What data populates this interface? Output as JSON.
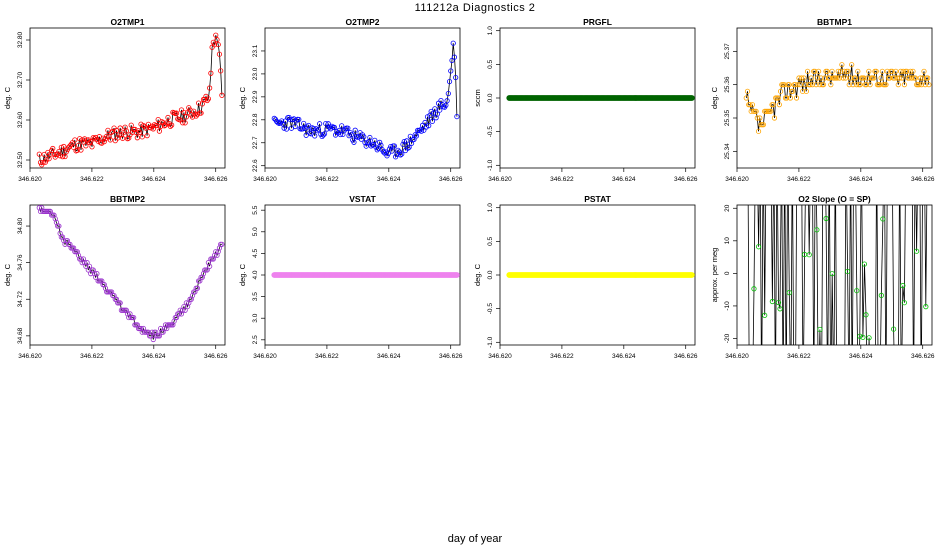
{
  "figure": {
    "title": "111212a   Diagnostics 2",
    "xcaption": "day of year"
  },
  "chart_data": [
    {
      "id": "o2tmp1",
      "type": "line",
      "title": "O2TMP1",
      "ylabel": "deg. C",
      "xlim": [
        346.62,
        346.6263
      ],
      "ylim": [
        32.48,
        32.83
      ],
      "xticks": [
        "346.620",
        "346.622",
        "346.624",
        "346.626"
      ],
      "yticks": [
        "32.50",
        "32.60",
        "32.70",
        "32.80"
      ],
      "color": "#ff0000",
      "points": "open-circle",
      "noise": 0.018,
      "seed": 11,
      "x": [
        346.6203,
        346.621,
        346.6215,
        346.622,
        346.6225,
        346.623,
        346.6235,
        346.624,
        346.6245,
        346.625,
        346.6255,
        346.6258,
        346.6259,
        346.6261,
        346.6262
      ],
      "y": [
        32.5,
        32.52,
        32.54,
        32.54,
        32.56,
        32.57,
        32.57,
        32.58,
        32.6,
        32.61,
        32.63,
        32.66,
        32.8,
        32.8,
        32.65
      ]
    },
    {
      "id": "o2tmp2",
      "type": "line",
      "title": "O2TMP2",
      "ylabel": "deg. C",
      "xlim": [
        346.62,
        346.6263
      ],
      "ylim": [
        22.59,
        23.2
      ],
      "xticks": [
        "346.620",
        "346.622",
        "346.624",
        "346.626"
      ],
      "yticks": [
        "22.6",
        "22.7",
        "22.8",
        "22.9",
        "23.0",
        "23.1"
      ],
      "color": "#0000ff",
      "points": "open-circle",
      "noise": 0.03,
      "seed": 23,
      "x": [
        346.6203,
        346.6208,
        346.6215,
        346.622,
        346.6225,
        346.623,
        346.6235,
        346.6238,
        346.624,
        346.6245,
        346.6248,
        346.6252,
        346.6256,
        346.6259,
        346.6261,
        346.6262
      ],
      "y": [
        22.78,
        22.79,
        22.75,
        22.76,
        22.75,
        22.72,
        22.7,
        22.67,
        22.65,
        22.68,
        22.72,
        22.78,
        22.85,
        22.88,
        23.15,
        22.84
      ]
    },
    {
      "id": "prgfl",
      "type": "scatter",
      "title": "PRGFL",
      "ylabel": "sccm",
      "xlim": [
        346.62,
        346.6263
      ],
      "ylim": [
        -1.04,
        1.04
      ],
      "xticks": [
        "346.620",
        "346.622",
        "346.624",
        "346.626"
      ],
      "yticks": [
        "-1.0",
        "-0.5",
        "0.0",
        "0.5",
        "1.0"
      ],
      "color": "#006400",
      "points": "filled-circle",
      "noise": 0,
      "seed": 0,
      "x": [
        346.6203,
        346.6262
      ],
      "y": [
        0.0,
        0.0
      ]
    },
    {
      "id": "bbtmp1",
      "type": "line",
      "title": "BBTMP1",
      "ylabel": "deg. C",
      "xlim": [
        346.62,
        346.6263
      ],
      "ylim": [
        25.335,
        25.377
      ],
      "xticks": [
        "346.620",
        "346.622",
        "346.624",
        "346.626"
      ],
      "yticks": [
        "25.34",
        "25.35",
        "25.36",
        "25.37"
      ],
      "color": "#ffa500",
      "points": "open-circle",
      "quantum": 0.002,
      "noise": 0.003,
      "seed": 37,
      "x": [
        346.6203,
        346.6207,
        346.621,
        346.6215,
        346.622,
        346.6225,
        346.623,
        346.6235,
        346.624,
        346.6245,
        346.625,
        346.6255,
        346.6262
      ],
      "y": [
        25.355,
        25.348,
        25.35,
        25.358,
        25.36,
        25.362,
        25.362,
        25.363,
        25.362,
        25.362,
        25.362,
        25.362,
        25.362
      ]
    },
    {
      "id": "bbtmp2",
      "type": "line",
      "title": "BBTMP2",
      "ylabel": "deg. C",
      "xlim": [
        346.62,
        346.6263
      ],
      "ylim": [
        34.67,
        34.823
      ],
      "xticks": [
        "346.620",
        "346.622",
        "346.624",
        "346.626"
      ],
      "yticks": [
        "34.68",
        "34.72",
        "34.76",
        "34.80"
      ],
      "color": "#9932cc",
      "points": "open-circle",
      "quantum": 0.004,
      "noise": 0.003,
      "seed": 51,
      "x": [
        346.6203,
        346.6208,
        346.621,
        346.6215,
        346.622,
        346.6225,
        346.623,
        346.6235,
        346.624,
        346.6245,
        346.625,
        346.6255,
        346.626,
        346.6262
      ],
      "y": [
        34.82,
        34.81,
        34.79,
        34.77,
        34.75,
        34.73,
        34.71,
        34.69,
        34.68,
        34.69,
        34.71,
        34.74,
        34.77,
        34.78
      ]
    },
    {
      "id": "vstat",
      "type": "scatter",
      "title": "VSTAT",
      "ylabel": "deg. C",
      "xlim": [
        346.62,
        346.6263
      ],
      "ylim": [
        2.38,
        5.62
      ],
      "xticks": [
        "346.620",
        "346.622",
        "346.624",
        "346.626"
      ],
      "yticks": [
        "2.5",
        "3.0",
        "3.5",
        "4.0",
        "4.5",
        "5.0",
        "5.5"
      ],
      "color": "#ee82ee",
      "points": "filled-circle",
      "noise": 0,
      "seed": 0,
      "x": [
        346.6203,
        346.6262
      ],
      "y": [
        4.0,
        4.0
      ]
    },
    {
      "id": "pstat",
      "type": "scatter",
      "title": "PSTAT",
      "ylabel": "deg. C",
      "xlim": [
        346.62,
        346.6263
      ],
      "ylim": [
        -1.04,
        1.04
      ],
      "xticks": [
        "346.620",
        "346.622",
        "346.624",
        "346.626"
      ],
      "yticks": [
        "-1.0",
        "-0.5",
        "0.0",
        "0.5",
        "1.0"
      ],
      "color": "#ffff00",
      "points": "filled-circle",
      "noise": 0,
      "seed": 0,
      "x": [
        346.6203,
        346.6262
      ],
      "y": [
        0.0,
        0.0
      ]
    },
    {
      "id": "o2slope",
      "type": "line",
      "title": "O2 Slope (O = SP)",
      "ylabel": "approx. per meg",
      "xlim": [
        346.62,
        346.6263
      ],
      "ylim": [
        -22,
        21
      ],
      "xticks": [
        "346.620",
        "346.622",
        "346.624",
        "346.626"
      ],
      "yticks": [
        "-20",
        "-10",
        "0",
        "10",
        "20"
      ],
      "color": "#00c000",
      "points": "open-circle",
      "mode": "spikes",
      "seed": 71,
      "x": [
        346.6203,
        346.6262
      ],
      "y": [
        0,
        0
      ]
    }
  ]
}
